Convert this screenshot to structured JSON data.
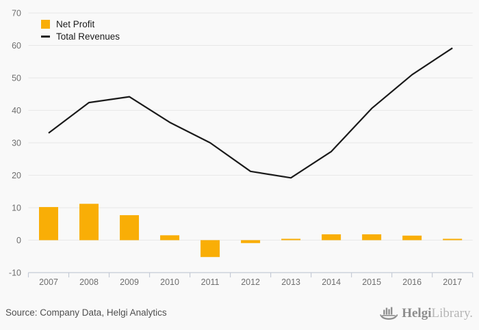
{
  "chart_data": {
    "type": "combo",
    "title": "",
    "xlabel": "",
    "ylabel": "",
    "categories": [
      "2007",
      "2008",
      "2009",
      "2010",
      "2011",
      "2012",
      "2013",
      "2014",
      "2015",
      "2016",
      "2017"
    ],
    "series": [
      {
        "name": "Net Profit",
        "type": "bar",
        "color": "#F9AE06",
        "values": [
          10.2,
          11.2,
          7.7,
          1.5,
          -5.2,
          -0.9,
          0.4,
          1.8,
          1.8,
          1.4,
          0.1
        ]
      },
      {
        "name": "Total Revenues",
        "type": "line",
        "color": "#1A1A1A",
        "values": [
          33,
          42.4,
          44.2,
          36.3,
          30,
          21.2,
          19.2,
          27.3,
          40.6,
          51,
          59.2
        ]
      }
    ],
    "ylim": [
      -10,
      70
    ],
    "ytick_step": 10,
    "grid": true,
    "legend_position": "top-left"
  },
  "footer": {
    "source": "Source: Company Data, Helgi Analytics",
    "logo_text_bold": "Helgi",
    "logo_text_light": "Library."
  },
  "icons": {
    "logo_icon": "viking-ship-bar-chart-icon"
  },
  "colors": {
    "background": "#F9F9F9",
    "grid": "#E8E8E8",
    "axis": "#C5CBD6",
    "axis_label": "#6E6E6E",
    "legend_text": "#1B1B1B",
    "source_text": "#4F4F4F",
    "logo_gray": "#8F8F8F",
    "logo_light_gray": "#B5B5B5"
  }
}
